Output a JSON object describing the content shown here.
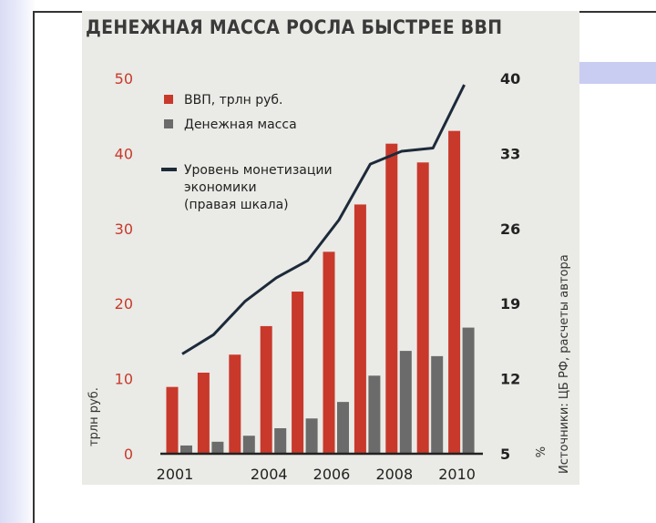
{
  "chart_data": {
    "type": "bar",
    "title": "ДЕНЕЖНАЯ МАССА РОСЛА БЫСТРЕЕ ВВП",
    "ylabel": "трлн руб.",
    "y2label": "%",
    "source": "Источники: ЦБ РФ, расчеты автора",
    "ylim": [
      0,
      50
    ],
    "yticks": [
      "0",
      "10",
      "20",
      "30",
      "40",
      "50"
    ],
    "y2lim": [
      5,
      40
    ],
    "y2ticks": [
      "5",
      "12",
      "19",
      "26",
      "33",
      "40"
    ],
    "x": [
      2001,
      2002,
      2003,
      2004,
      2005,
      2006,
      2007,
      2008,
      2009,
      2010
    ],
    "xtick_labels": [
      "2001",
      "2004",
      "2006",
      "2008",
      "2010"
    ],
    "xtick_years": [
      2001,
      2004,
      2006,
      2008,
      2010
    ],
    "legend_position": "top-left",
    "series": [
      {
        "name": "ВВП, трлн руб.",
        "type": "bar",
        "axis": "left",
        "color": "#c8392b",
        "values": [
          8.9,
          10.8,
          13.2,
          17.0,
          21.6,
          26.9,
          33.2,
          41.3,
          38.8,
          43.0
        ]
      },
      {
        "name": "Денежная масса",
        "type": "bar",
        "axis": "left",
        "color": "#6b6b6b",
        "values": [
          1.1,
          1.6,
          2.4,
          3.4,
          4.7,
          6.9,
          10.4,
          13.7,
          13.0,
          16.8
        ]
      },
      {
        "name": "Уровень монетизации\nэкономики\n(правая шкала)",
        "type": "line",
        "axis": "right",
        "color": "#1c2a3a",
        "values": [
          14.3,
          16.1,
          19.2,
          21.4,
          23.0,
          26.8,
          32.0,
          33.2,
          33.5,
          39.4
        ]
      }
    ]
  }
}
